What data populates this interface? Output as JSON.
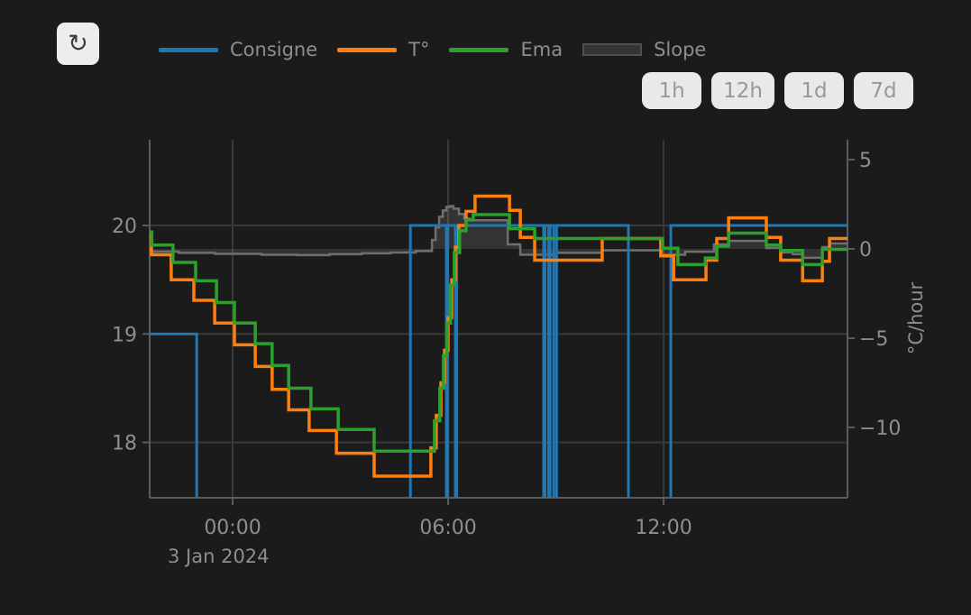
{
  "app": {
    "background": "#1b1b1b"
  },
  "toolbar": {
    "refresh_icon": "↻"
  },
  "legend": {
    "items": [
      {
        "label": "Consigne",
        "type": "line",
        "color": "#1f77b4"
      },
      {
        "label": "T°",
        "type": "line",
        "color": "#ff7f0e"
      },
      {
        "label": "Ema",
        "type": "line",
        "color": "#2ca02c"
      },
      {
        "label": "Slope",
        "type": "area",
        "fill": "#343434",
        "border": "#4f4f4f"
      }
    ]
  },
  "range_buttons": [
    {
      "label": "1h"
    },
    {
      "label": "12h"
    },
    {
      "label": "1d"
    },
    {
      "label": "7d"
    }
  ],
  "chart_data": {
    "type": "line",
    "title": "",
    "grid": true,
    "legend_position": "top",
    "colors": {
      "grid": "#3a3a3a",
      "axis": "#5c5c5c",
      "text": "#8e8e8e"
    },
    "x_axis": {
      "date_label": "3 Jan 2024",
      "range_hours": [
        -2.31,
        17.12
      ],
      "ticks": [
        {
          "hour": 0,
          "label": "00:00"
        },
        {
          "hour": 6,
          "label": "06:00"
        },
        {
          "hour": 12,
          "label": "12:00"
        }
      ]
    },
    "y_left": {
      "title": "",
      "unit": "°C",
      "range": [
        17.49,
        20.79
      ],
      "ticks": [
        {
          "value": 20,
          "label": "20"
        },
        {
          "value": 19,
          "label": "19"
        },
        {
          "value": 18,
          "label": "18"
        }
      ]
    },
    "y_right": {
      "title": "°C/hour",
      "range": [
        -13.94,
        6.11
      ],
      "ticks": [
        {
          "value": 5,
          "label": "5"
        },
        {
          "value": 0,
          "label": "0"
        },
        {
          "value": -5,
          "label": "−5"
        },
        {
          "value": -10,
          "label": "−10"
        }
      ]
    },
    "series": [
      {
        "name": "Slope",
        "key": "slope",
        "axis": "right",
        "mode": "step",
        "color": "#6f6f6f",
        "width": 2.5,
        "fill": "rgba(160,160,160,0.18)",
        "baseline": 0,
        "end_hour": 17.12,
        "points": [
          [
            -2.31,
            -0.15
          ],
          [
            -1.5,
            -0.22
          ],
          [
            -0.5,
            -0.28
          ],
          [
            0.8,
            -0.33
          ],
          [
            1.8,
            -0.35
          ],
          [
            2.7,
            -0.3
          ],
          [
            3.6,
            -0.25
          ],
          [
            4.4,
            -0.2
          ],
          [
            5.1,
            -0.12
          ],
          [
            5.55,
            0.5
          ],
          [
            5.65,
            1.2
          ],
          [
            5.75,
            1.8
          ],
          [
            5.85,
            2.15
          ],
          [
            5.95,
            2.35
          ],
          [
            6.05,
            2.4
          ],
          [
            6.15,
            2.25
          ],
          [
            6.3,
            1.95
          ],
          [
            6.45,
            1.7
          ],
          [
            6.6,
            1.6
          ],
          [
            7.66,
            0.25
          ],
          [
            8.01,
            -0.33
          ],
          [
            9.0,
            -0.22
          ],
          [
            10.3,
            -0.08
          ],
          [
            11.95,
            -0.33
          ],
          [
            12.6,
            -0.16
          ],
          [
            13.4,
            0.25
          ],
          [
            13.8,
            0.45
          ],
          [
            14.86,
            0.05
          ],
          [
            15.26,
            -0.2
          ],
          [
            15.6,
            -0.3
          ],
          [
            15.87,
            -0.5
          ],
          [
            16.42,
            0.1
          ],
          [
            16.62,
            0.3
          ]
        ]
      },
      {
        "name": "Consigne",
        "key": "consigne",
        "axis": "left",
        "mode": "step",
        "color": "#1f77b4",
        "width": 3,
        "end_hour": 17.12,
        "points": [
          [
            -2.31,
            19
          ],
          [
            -1.0,
            17
          ],
          [
            4.95,
            20
          ],
          [
            5.95,
            17
          ],
          [
            5.99,
            20
          ],
          [
            6.2,
            17
          ],
          [
            6.24,
            20
          ],
          [
            8.66,
            17
          ],
          [
            8.7,
            20
          ],
          [
            8.8,
            17
          ],
          [
            8.84,
            20
          ],
          [
            8.94,
            17
          ],
          [
            9.02,
            20
          ],
          [
            11.02,
            17
          ],
          [
            12.2,
            20
          ]
        ]
      },
      {
        "name": "T°",
        "key": "temperature",
        "axis": "left",
        "mode": "step",
        "color": "#ff7f0e",
        "width": 3.5,
        "end_hour": 17.12,
        "points": [
          [
            -2.31,
            19.9
          ],
          [
            -2.26,
            19.73
          ],
          [
            -1.71,
            19.5
          ],
          [
            -1.08,
            19.31
          ],
          [
            -0.5,
            19.1
          ],
          [
            0.05,
            18.9
          ],
          [
            0.63,
            18.7
          ],
          [
            1.1,
            18.49
          ],
          [
            1.56,
            18.3
          ],
          [
            2.13,
            18.11
          ],
          [
            2.89,
            17.9
          ],
          [
            3.94,
            17.69
          ],
          [
            5.52,
            17.95
          ],
          [
            5.67,
            18.25
          ],
          [
            5.8,
            18.55
          ],
          [
            5.9,
            18.85
          ],
          [
            6.0,
            19.15
          ],
          [
            6.1,
            19.5
          ],
          [
            6.2,
            19.8
          ],
          [
            6.3,
            20.0
          ],
          [
            6.5,
            20.13
          ],
          [
            6.75,
            20.27
          ],
          [
            7.71,
            20.14
          ],
          [
            8.01,
            19.89
          ],
          [
            8.41,
            19.68
          ],
          [
            10.29,
            19.88
          ],
          [
            11.92,
            19.72
          ],
          [
            12.28,
            19.5
          ],
          [
            13.18,
            19.68
          ],
          [
            13.48,
            19.88
          ],
          [
            13.81,
            20.07
          ],
          [
            14.86,
            19.89
          ],
          [
            15.26,
            19.68
          ],
          [
            15.87,
            19.49
          ],
          [
            16.42,
            19.67
          ],
          [
            16.62,
            19.88
          ]
        ]
      },
      {
        "name": "Ema",
        "key": "ema",
        "axis": "left",
        "mode": "step",
        "color": "#2ca02c",
        "width": 3.5,
        "end_hour": 17.12,
        "points": [
          [
            -2.31,
            19.94
          ],
          [
            -2.25,
            19.82
          ],
          [
            -1.66,
            19.66
          ],
          [
            -1.03,
            19.49
          ],
          [
            -0.45,
            19.29
          ],
          [
            0.05,
            19.1
          ],
          [
            0.63,
            18.91
          ],
          [
            1.1,
            18.71
          ],
          [
            1.56,
            18.5
          ],
          [
            2.18,
            18.31
          ],
          [
            2.94,
            18.12
          ],
          [
            3.94,
            17.92
          ],
          [
            5.62,
            18.2
          ],
          [
            5.77,
            18.5
          ],
          [
            5.87,
            18.8
          ],
          [
            5.97,
            19.1
          ],
          [
            6.07,
            19.45
          ],
          [
            6.17,
            19.75
          ],
          [
            6.32,
            19.95
          ],
          [
            6.5,
            20.05
          ],
          [
            6.7,
            20.1
          ],
          [
            7.71,
            19.97
          ],
          [
            8.41,
            19.88
          ],
          [
            11.97,
            19.79
          ],
          [
            12.4,
            19.64
          ],
          [
            13.16,
            19.7
          ],
          [
            13.48,
            19.81
          ],
          [
            13.81,
            19.93
          ],
          [
            14.86,
            19.82
          ],
          [
            15.26,
            19.77
          ],
          [
            15.87,
            19.64
          ],
          [
            16.42,
            19.78
          ]
        ]
      }
    ]
  }
}
